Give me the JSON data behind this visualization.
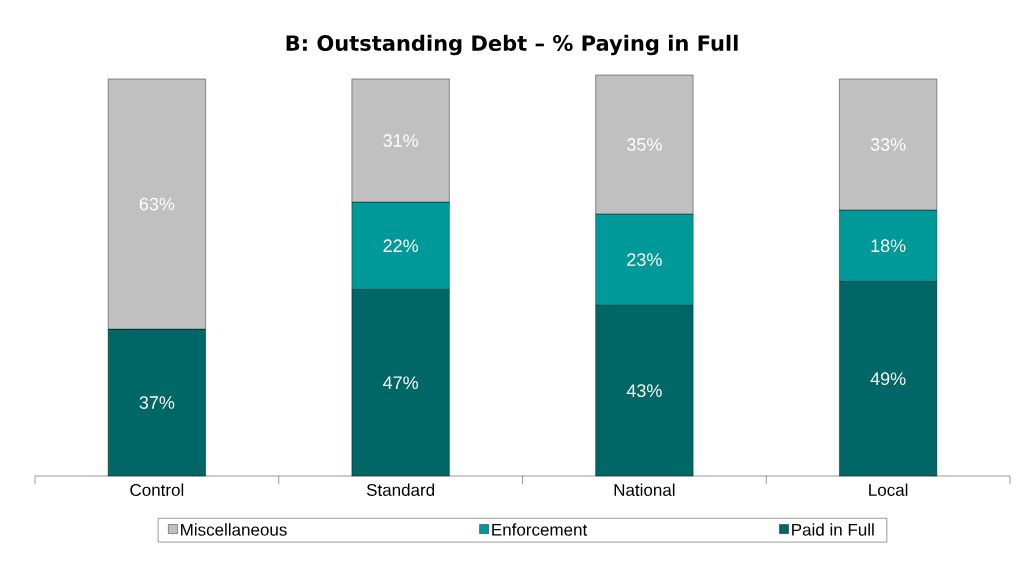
{
  "chart_data": {
    "type": "bar",
    "stacked": true,
    "title": "B: Outstanding Debt – % Paying in Full",
    "categories": [
      "Control",
      "Standard",
      "National",
      "Local"
    ],
    "series": [
      {
        "name": "Paid in Full",
        "color": "#006666",
        "values": [
          37,
          47,
          43,
          49
        ],
        "value_labels": [
          "37%",
          "47%",
          "43%",
          "49%"
        ]
      },
      {
        "name": "Enforcement",
        "color": "#009999",
        "values": [
          null,
          22,
          23,
          18
        ],
        "value_labels": [
          null,
          "22%",
          "23%",
          "18%"
        ]
      },
      {
        "name": "Miscellaneous",
        "color": "#c0c0c0",
        "values": [
          63,
          31,
          35,
          33
        ],
        "value_labels": [
          "63%",
          "31%",
          "35%",
          "33%"
        ]
      }
    ],
    "ylim": [
      0,
      101
    ],
    "tick_labels": "x",
    "legend": "bottom"
  }
}
